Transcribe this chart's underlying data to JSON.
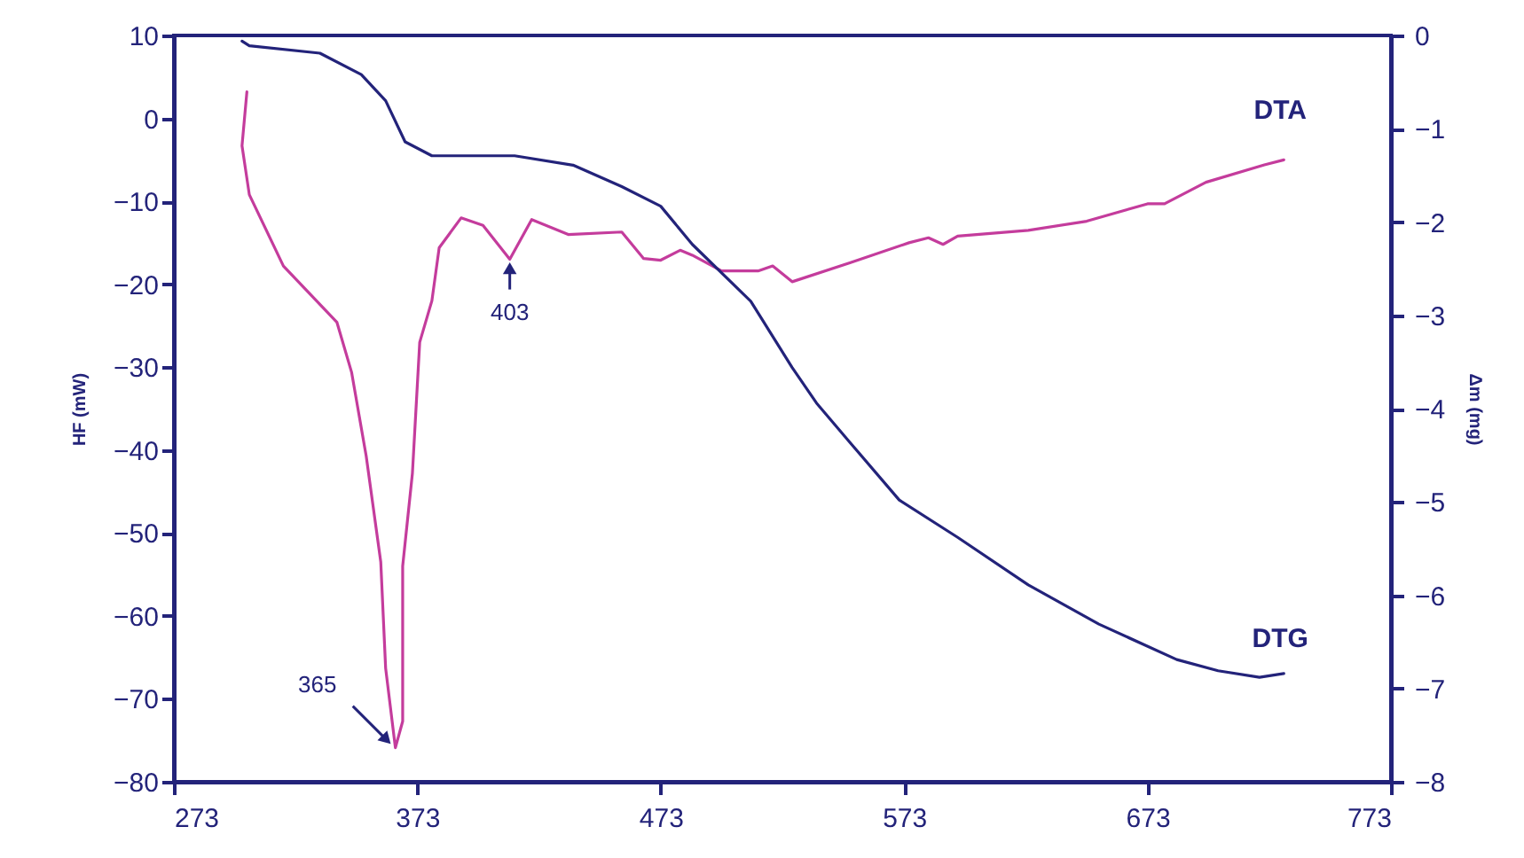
{
  "chart_data": {
    "type": "line",
    "ylabel": "HF (mW)",
    "y2label": "Δm (mg)",
    "xlim": [
      273,
      773
    ],
    "xticks": [
      273,
      373,
      473,
      573,
      673,
      773
    ],
    "ylim": [
      -80,
      10
    ],
    "yticks": [
      -80,
      -70,
      -60,
      -50,
      -40,
      -30,
      -20,
      -10,
      0,
      10
    ],
    "y2lim": [
      -8,
      0
    ],
    "y2ticks": [
      -8,
      -7,
      -6,
      -5,
      -4,
      -3,
      -2,
      -1,
      0
    ],
    "marker": "none",
    "line_style": "solid",
    "annotations": [
      {
        "text": "365",
        "x": 364,
        "y": -76
      },
      {
        "text": "403",
        "x": 411,
        "y": -17
      }
    ],
    "series": [
      {
        "name": "DTA",
        "color": "#c43c9c",
        "x": [
          303,
          301,
          304,
          318,
          340,
          346,
          352,
          358,
          360,
          364,
          367,
          367,
          371,
          374,
          379,
          382,
          391,
          400,
          411,
          420,
          435,
          457,
          466,
          473,
          481,
          486,
          498,
          513,
          519,
          527,
          551,
          575,
          583,
          589,
          595,
          624,
          648,
          673,
          680,
          697,
          721,
          729
        ],
        "values": [
          3.2,
          -3.3,
          -9.2,
          -17.8,
          -24.6,
          -30.6,
          -40.7,
          -53.5,
          -66.3,
          -75.9,
          -72.7,
          -54,
          -42.8,
          -27,
          -22,
          -15.6,
          -12,
          -12.9,
          -17,
          -12.2,
          -14,
          -13.7,
          -16.9,
          -17.1,
          -15.9,
          -16.5,
          -18.4,
          -18.4,
          -17.8,
          -19.7,
          -17.4,
          -15,
          -14.4,
          -15.2,
          -14.2,
          -13.5,
          -12.4,
          -10.3,
          -10.3,
          -7.7,
          -5.6,
          -5
        ]
      },
      {
        "name": "DTG",
        "color": "#23237a",
        "axis": "y2",
        "x": [
          301,
          304,
          333,
          350,
          360,
          368,
          379,
          413,
          437,
          457,
          473,
          486,
          510,
          527,
          537,
          551,
          571,
          595,
          624,
          653,
          685,
          702,
          719,
          729
        ],
        "values": [
          -0.06,
          -0.11,
          -0.19,
          -0.42,
          -0.7,
          -1.14,
          -1.29,
          -1.29,
          -1.39,
          -1.62,
          -1.83,
          -2.24,
          -2.85,
          -3.56,
          -3.94,
          -4.37,
          -4.98,
          -5.38,
          -5.89,
          -6.31,
          -6.69,
          -6.81,
          -6.88,
          -6.84
        ]
      }
    ]
  }
}
